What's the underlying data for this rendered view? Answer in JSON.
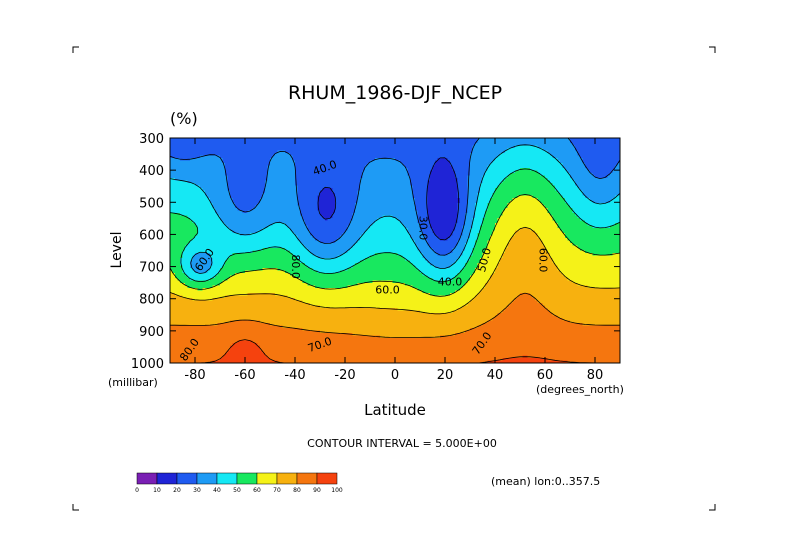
{
  "chart_data": {
    "type": "heatmap",
    "title": "RHUM_1986-DJF_NCEP",
    "units": "(%)",
    "ylabel": "Level",
    "yunit": "(millibar)",
    "xlabel": "Latitude",
    "xunit": "(degrees_north)",
    "xlim": [
      -90,
      90
    ],
    "ylim": [
      1000,
      300
    ],
    "x_ticks": [
      -80,
      -60,
      -40,
      -20,
      0,
      20,
      40,
      60,
      80
    ],
    "y_ticks": [
      300,
      400,
      500,
      600,
      700,
      800,
      900,
      1000
    ],
    "contour_interval_text": "CONTOUR INTERVAL = 5.000E+00",
    "footer_text": "(mean) lon:0..357.5",
    "contour_labels": [
      {
        "text": "40.0",
        "lat": -28,
        "lev": 395,
        "angle": -20
      },
      {
        "text": "30.0",
        "lat": 11,
        "lev": 580,
        "angle": 90
      },
      {
        "text": "40.0",
        "lat": 22,
        "lev": 750,
        "angle": 0
      },
      {
        "text": "50.0",
        "lat": 36,
        "lev": 680,
        "angle": -75
      },
      {
        "text": "60.0",
        "lat": -76,
        "lev": 680,
        "angle": -55
      },
      {
        "text": "60.0",
        "lat": 59,
        "lev": 680,
        "angle": 90
      },
      {
        "text": "80.0",
        "lat": -40,
        "lev": 700,
        "angle": 90
      },
      {
        "text": "60.0",
        "lat": -3,
        "lev": 775,
        "angle": 0
      },
      {
        "text": "70.0",
        "lat": -30,
        "lev": 945,
        "angle": -20
      },
      {
        "text": "70.0",
        "lat": 35,
        "lev": 940,
        "angle": -55
      },
      {
        "text": "80.0",
        "lat": -82,
        "lev": 960,
        "angle": -55
      }
    ],
    "colorbar": {
      "levels": [
        0,
        10,
        20,
        30,
        40,
        50,
        60,
        70,
        80,
        90,
        100
      ],
      "colors": [
        "#7a1fb4",
        "#1f24d6",
        "#1f5bf0",
        "#1e9bf5",
        "#15e8f4",
        "#18e85f",
        "#f5f218",
        "#f7b10f",
        "#f5760f",
        "#f5420e"
      ]
    }
  }
}
